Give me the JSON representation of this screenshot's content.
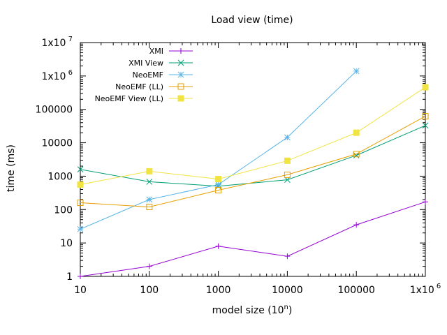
{
  "chart_data": {
    "type": "line",
    "title": "Load view (time)",
    "xlabel": "model size (10^n)",
    "xlabel_base": "model size (10",
    "xlabel_sup": "n",
    "xlabel_close": ")",
    "ylabel": "time (ms)",
    "x_scale": "log",
    "y_scale": "log",
    "xlim": [
      10,
      1000000
    ],
    "ylim": [
      1,
      10000000
    ],
    "x_ticks": [
      {
        "value": 10,
        "label": "10"
      },
      {
        "value": 100,
        "label": "100"
      },
      {
        "value": 1000,
        "label": "1000"
      },
      {
        "value": 10000,
        "label": "10000"
      },
      {
        "value": 100000,
        "label": "100000"
      },
      {
        "value": 1000000,
        "label": "1x10",
        "sup": "6"
      }
    ],
    "y_ticks": [
      {
        "value": 1,
        "label": "1"
      },
      {
        "value": 10,
        "label": "10"
      },
      {
        "value": 100,
        "label": "100"
      },
      {
        "value": 1000,
        "label": "1000"
      },
      {
        "value": 10000,
        "label": "10000"
      },
      {
        "value": 100000,
        "label": "100000"
      },
      {
        "value": 1000000,
        "label": "1x10",
        "sup": "6"
      },
      {
        "value": 10000000,
        "label": "1x10",
        "sup": "7"
      }
    ],
    "grid": false,
    "legend_position": "top-left",
    "series": [
      {
        "name": "XMI",
        "color": "#9400d3",
        "marker": "plus",
        "points": [
          [
            10,
            1
          ],
          [
            100,
            2
          ],
          [
            1000,
            8
          ],
          [
            10000,
            4
          ],
          [
            100000,
            35
          ],
          [
            1000000,
            170
          ]
        ]
      },
      {
        "name": "XMI View",
        "color": "#009e73",
        "marker": "x",
        "points": [
          [
            10,
            1600
          ],
          [
            100,
            680
          ],
          [
            1000,
            500
          ],
          [
            10000,
            780
          ],
          [
            100000,
            4200
          ],
          [
            1000000,
            33000
          ]
        ]
      },
      {
        "name": "NeoEMF",
        "color": "#56b4e9",
        "marker": "star",
        "points": [
          [
            10,
            26
          ],
          [
            100,
            200
          ],
          [
            1000,
            560
          ],
          [
            10000,
            14500
          ],
          [
            100000,
            1400000
          ]
        ]
      },
      {
        "name": "NeoEMF (LL)",
        "color": "#e69f00",
        "marker": "open-square",
        "points": [
          [
            10,
            160
          ],
          [
            100,
            120
          ],
          [
            1000,
            380
          ],
          [
            10000,
            1100
          ],
          [
            100000,
            4600
          ],
          [
            1000000,
            62000
          ]
        ]
      },
      {
        "name": "NeoEMF View (LL)",
        "color": "#f0e442",
        "marker": "filled-square",
        "points": [
          [
            10,
            560
          ],
          [
            100,
            1400
          ],
          [
            1000,
            820
          ],
          [
            10000,
            2900
          ],
          [
            100000,
            20000
          ],
          [
            1000000,
            460000
          ]
        ]
      }
    ]
  }
}
